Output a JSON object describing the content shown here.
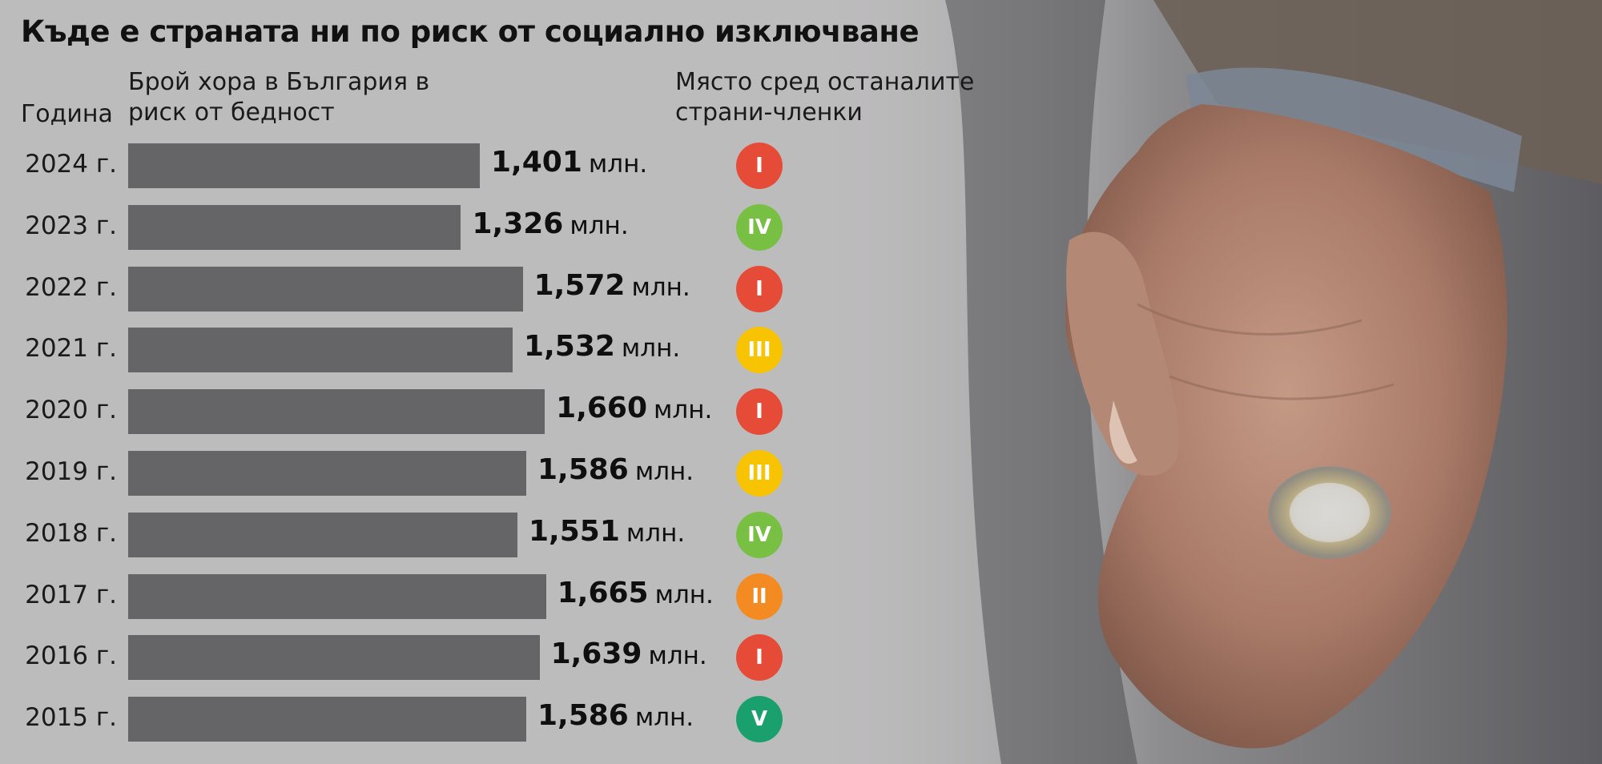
{
  "title": "Къде е страната ни по риск от социално изключване",
  "headers": {
    "year": "Година",
    "count_line1": "Брой хора в България в",
    "count_line2": "риск от бедност",
    "place_line1": "Място сред останалите",
    "place_line2": "страни-членки"
  },
  "unit": "млн.",
  "colors": {
    "background": "#bdbcbd",
    "bar": "#656567",
    "I": "#e54b36",
    "II": "#f48a22",
    "III": "#f8c300",
    "IV": "#78c043",
    "V": "#1aa06c"
  },
  "chart_data": {
    "type": "bar",
    "orientation": "horizontal",
    "categories": [
      "2024 г.",
      "2023 г.",
      "2022 г.",
      "2021 г.",
      "2020 г.",
      "2019 г.",
      "2018 г.",
      "2017 г.",
      "2016 г.",
      "2015 г."
    ],
    "values": [
      1.401,
      1.326,
      1.572,
      1.532,
      1.66,
      1.586,
      1.551,
      1.665,
      1.639,
      1.586
    ],
    "value_labels": [
      "1,401",
      "1,326",
      "1,572",
      "1,532",
      "1,660",
      "1,586",
      "1,551",
      "1,665",
      "1,639",
      "1,586"
    ],
    "ranks": [
      "I",
      "IV",
      "I",
      "III",
      "I",
      "III",
      "IV",
      "II",
      "I",
      "V"
    ],
    "xlim": [
      0,
      2.0
    ],
    "grid": false
  }
}
